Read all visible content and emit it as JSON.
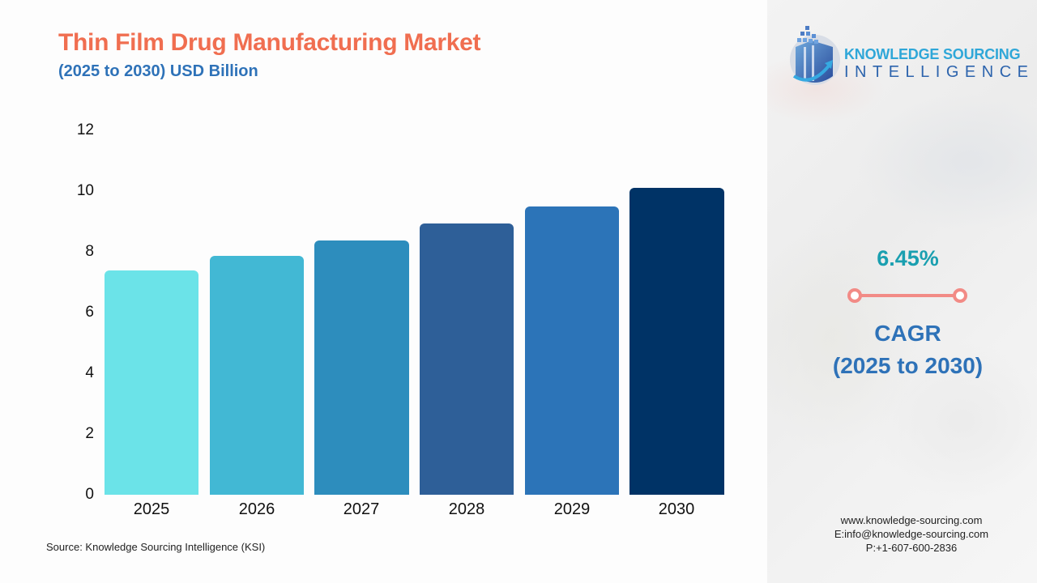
{
  "header": {
    "title": "Thin Film Drug Manufacturing Market",
    "subtitle": "(2025 to 2030) USD Billion"
  },
  "colors": {
    "title": "#f06e50",
    "subtitle": "#2e72b8",
    "cagr_value": "#1a9fb0",
    "cagr_connector": "#f28b86",
    "bars": [
      "#6be3e8",
      "#42b8d4",
      "#2d8dbd",
      "#2e5f98",
      "#2c74b8",
      "#003366"
    ]
  },
  "chart_data": {
    "type": "bar",
    "title": "Thin Film Drug Manufacturing Market",
    "subtitle": "(2025 to 2030) USD Billion",
    "categories": [
      "2025",
      "2026",
      "2027",
      "2028",
      "2029",
      "2030"
    ],
    "values": [
      7.4,
      7.87,
      8.38,
      8.93,
      9.49,
      10.1
    ],
    "xlabel": "",
    "ylabel": "USD Billion",
    "ylim": [
      0,
      12
    ],
    "yticks": [
      0,
      2,
      4,
      6,
      8,
      10,
      12
    ],
    "grid": false,
    "legend": null
  },
  "y_axis": {
    "ticks": [
      "12",
      "10",
      "8",
      "6",
      "4",
      "2",
      "0"
    ]
  },
  "x_axis": {
    "labels": [
      "2025",
      "2026",
      "2027",
      "2028",
      "2029",
      "2030"
    ]
  },
  "source": "Source: Knowledge Sourcing Intelligence (KSI)",
  "logo": {
    "line1": "KNOWLEDGE SOURCING",
    "line2": "INTELLIGENCE"
  },
  "cagr": {
    "value": "6.45%",
    "label": "CAGR",
    "period": "(2025 to 2030)"
  },
  "contact": {
    "website": "www.knowledge-sourcing.com",
    "email": "E:info@knowledge-sourcing.com",
    "phone": "P:+1-607-600-2836"
  }
}
